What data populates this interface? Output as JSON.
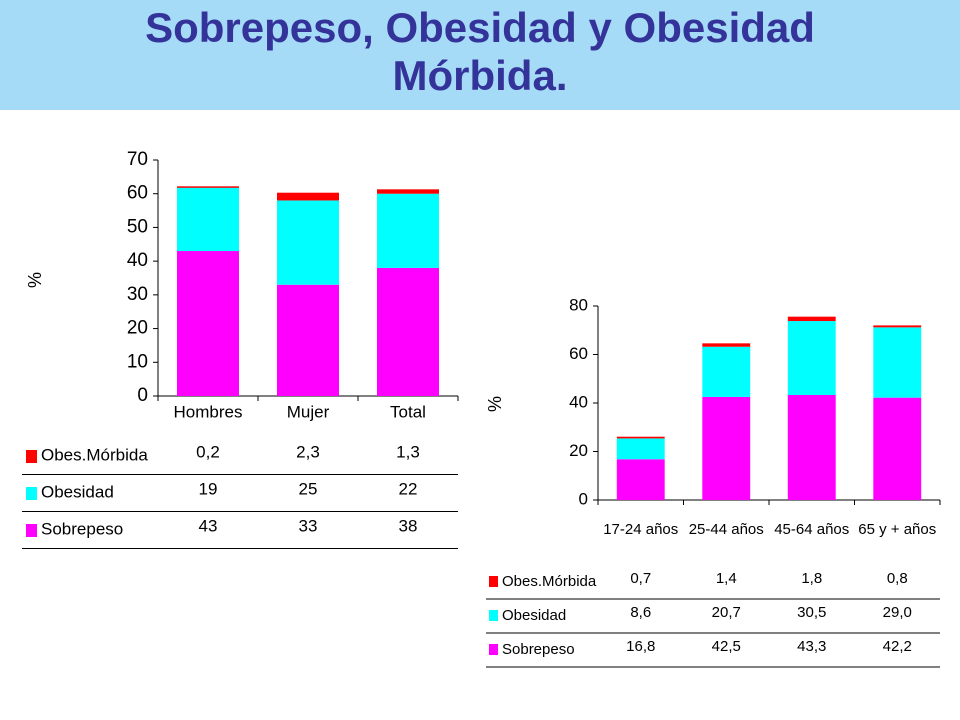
{
  "header": {
    "title_line1": "Sobrepeso, Obesidad y Obesidad",
    "title_line2": "Mórbida."
  },
  "colors": {
    "banner": "#a6dbf8",
    "title": "#333399",
    "sobrepeso": "#ff00ff",
    "obesidad": "#00ffff",
    "obes_morbida": "#ff0000"
  },
  "chart_data": [
    {
      "type": "bar",
      "stacked": true,
      "ylabel": "%",
      "ylim": [
        0,
        70
      ],
      "yticks": [
        0,
        10,
        20,
        30,
        40,
        50,
        60,
        70
      ],
      "grid": false,
      "categories": [
        "Hombres",
        "Mujer",
        "Total"
      ],
      "series": [
        {
          "name": "Sobrepeso",
          "values": [
            43,
            33,
            38
          ],
          "labels": [
            "43",
            "33",
            "38"
          ]
        },
        {
          "name": "Obesidad",
          "values": [
            19,
            25,
            22
          ],
          "labels": [
            "19",
            "25",
            "22"
          ]
        },
        {
          "name": "Obes.Mórbida",
          "values": [
            0.2,
            2.3,
            1.3
          ],
          "labels": [
            "0,2",
            "2,3",
            "1,3"
          ]
        }
      ],
      "legend": "data table below chart"
    },
    {
      "type": "bar",
      "stacked": true,
      "ylabel": "%",
      "ylim": [
        0,
        80
      ],
      "yticks": [
        0,
        20,
        40,
        60,
        80
      ],
      "grid": false,
      "categories": [
        "17-24 años",
        "25-44 años",
        "45-64 años",
        "65 y + años"
      ],
      "series": [
        {
          "name": "Sobrepeso",
          "values": [
            16.8,
            42.5,
            43.3,
            42.2
          ],
          "labels": [
            "16,8",
            "42,5",
            "43,3",
            "42,2"
          ]
        },
        {
          "name": "Obesidad",
          "values": [
            8.6,
            20.7,
            30.5,
            29.0
          ],
          "labels": [
            "8,6",
            "20,7",
            "30,5",
            "29,0"
          ]
        },
        {
          "name": "Obes.Mórbida",
          "values": [
            0.7,
            1.4,
            1.8,
            0.8
          ],
          "labels": [
            "0,7",
            "1,4",
            "1,8",
            "0,8"
          ]
        }
      ],
      "legend": "data table below chart"
    }
  ]
}
